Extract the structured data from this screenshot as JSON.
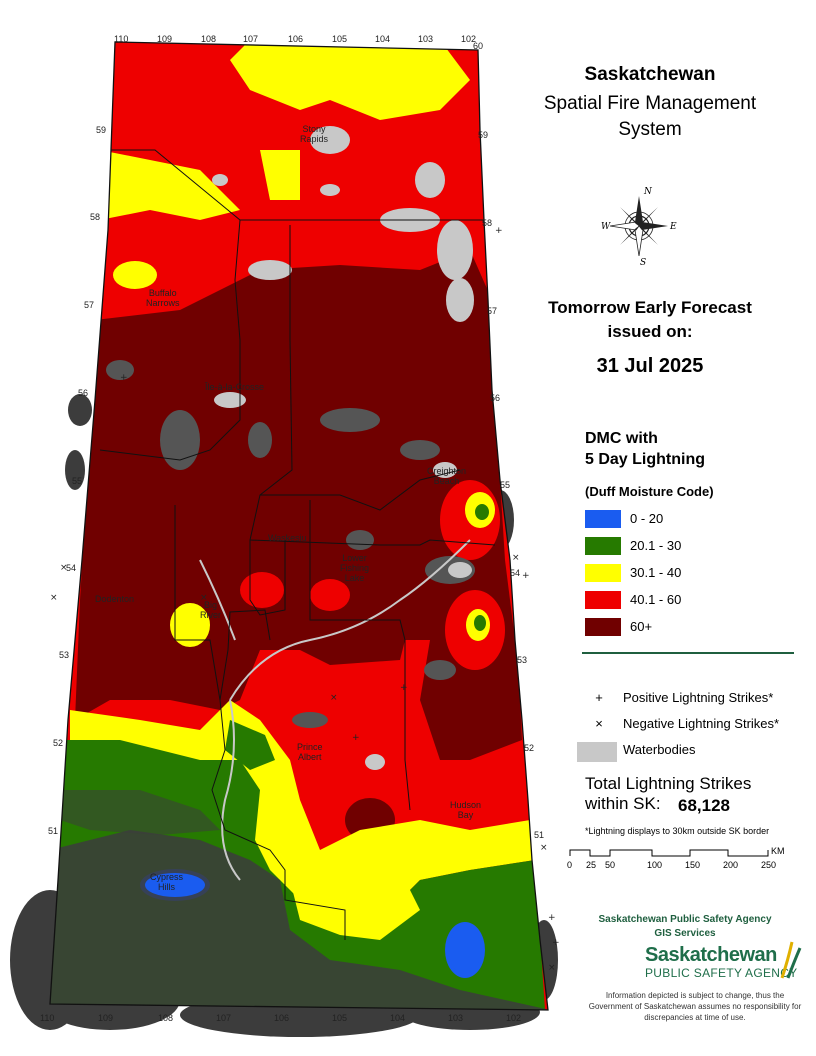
{
  "title": {
    "line1": "Saskatchewan",
    "line2": "Spatial Fire Management",
    "line3": "System"
  },
  "compass": {
    "icon": "compass-rose-icon",
    "n": "N",
    "s": "S",
    "e": "E",
    "w": "W"
  },
  "forecast": {
    "line1": "Tomorrow Early Forecast",
    "line2": "issued on:",
    "date": "31 Jul 2025"
  },
  "legend": {
    "title_line1": "DMC with",
    "title_line2": "5 Day Lightning",
    "subtitle": "(Duff Moisture Code)",
    "classes": [
      {
        "label": "0 - 20",
        "color": "#1a5cf0"
      },
      {
        "label": "20.1 - 30",
        "color": "#267a00"
      },
      {
        "label": "30.1 - 40",
        "color": "#ffff00"
      },
      {
        "label": "40.1 - 60",
        "color": "#ee0000"
      },
      {
        "label": "60+",
        "color": "#700000"
      }
    ],
    "symbols": {
      "positive_symbol": "+",
      "positive_label": "Positive Lightning Strikes*",
      "negative_symbol": "×",
      "negative_label": "Negative Lightning Strikes*",
      "water_label": "Waterbodies"
    },
    "total_line1": "Total Lightning Strikes",
    "total_line2": "within SK:",
    "total_value": "68,128",
    "note": "*Lightning displays to 30km outside SK border"
  },
  "scale": {
    "ticks": [
      "0",
      "25",
      "50",
      "100",
      "150",
      "200",
      "250"
    ],
    "unit": "KM"
  },
  "agency": {
    "line1": "Saskatchewan Public Safety Agency",
    "line2": "GIS  Services",
    "logo_main": "Saskatchewan",
    "logo_sub": "PUBLIC SAFETY AGENCY",
    "disclaimer": "Information depicted is subject to change, thus the Government of Saskatchewan assumes no responsibility for discrepancies at time of use."
  },
  "places": [
    {
      "name": "Stony\nRapids"
    },
    {
      "name": "Buffalo\nNarrows"
    },
    {
      "name": "Île-à-la-Crosse"
    },
    {
      "name": "Creighton\nBeach"
    },
    {
      "name": "Waskesiu"
    },
    {
      "name": "Lower\nFishing\nLake"
    },
    {
      "name": "Dodenton"
    },
    {
      "name": "Big\nRiver"
    },
    {
      "name": "Prince\nAlbert"
    },
    {
      "name": "Hudson\nBay"
    },
    {
      "name": "Cypress\nHills"
    }
  ],
  "longitudes_top": [
    "110",
    "109",
    "108",
    "107",
    "106",
    "105",
    "104",
    "103",
    "102"
  ],
  "top_right_lat": "60",
  "longitudes_bottom": [
    "110",
    "109",
    "108",
    "107",
    "106",
    "105",
    "104",
    "103",
    "102"
  ],
  "latitudes_left": [
    "59",
    "58",
    "57",
    "56",
    "55",
    "54",
    "53",
    "52",
    "51"
  ],
  "latitudes_right": [
    "59",
    "58",
    "57",
    "56",
    "55",
    "54",
    "53",
    "52",
    "51"
  ]
}
